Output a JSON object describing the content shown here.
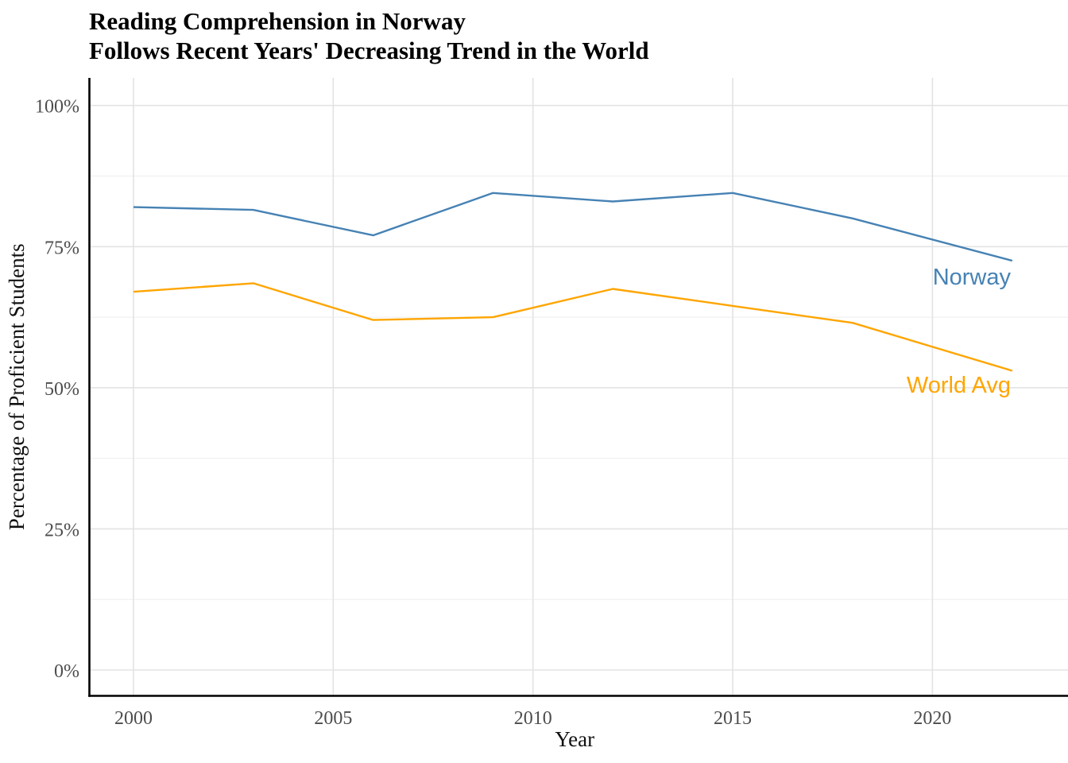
{
  "title": {
    "line1": "Reading Comprehension in Norway",
    "line2": "Follows Recent Years' Decreasing Trend in the World"
  },
  "axes": {
    "x_title": "Year",
    "y_title": "Percentage of Proficient Students"
  },
  "colors": {
    "norway": "#4682B4",
    "world_avg": "#FFA500",
    "axis_line": "#000000",
    "tick_text": "#4d4d4d",
    "grid_major": "#e3e3e3",
    "grid_minor": "#eeeeee",
    "background": "#ffffff"
  },
  "chart_data": {
    "type": "line",
    "title": "Reading Comprehension in Norway Follows Recent Years' Decreasing Trend in the World",
    "xlabel": "Year",
    "ylabel": "Percentage of Proficient Students",
    "x": [
      2000,
      2003,
      2006,
      2009,
      2012,
      2015,
      2018,
      2022
    ],
    "series": [
      {
        "name": "Norway",
        "color": "#4682B4",
        "values": [
          82,
          81.5,
          77,
          84.5,
          83,
          84.5,
          80,
          72.5
        ]
      },
      {
        "name": "World Avg",
        "color": "#FFA500",
        "values": [
          67,
          68.5,
          62,
          62.5,
          67.5,
          64.5,
          61.5,
          53
        ]
      }
    ],
    "xlim": [
      2000,
      2022
    ],
    "ylim": [
      0,
      100
    ],
    "x_ticks": [
      {
        "value": 2000,
        "label": "2000"
      },
      {
        "value": 2005,
        "label": "2005"
      },
      {
        "value": 2010,
        "label": "2010"
      },
      {
        "value": 2015,
        "label": "2015"
      },
      {
        "value": 2020,
        "label": "2020"
      }
    ],
    "y_ticks": [
      {
        "value": 0,
        "label": "0%"
      },
      {
        "value": 25,
        "label": "25%"
      },
      {
        "value": 50,
        "label": "50%"
      },
      {
        "value": 75,
        "label": "75%"
      },
      {
        "value": 100,
        "label": "100%"
      }
    ],
    "y_minor_gridlines": [
      12.5,
      37.5,
      62.5,
      87.5
    ],
    "grid": "white panel; light gray major gridlines both axes; horizontal minor gridlines only",
    "legend": "none - series labeled inline at right end of each line"
  }
}
